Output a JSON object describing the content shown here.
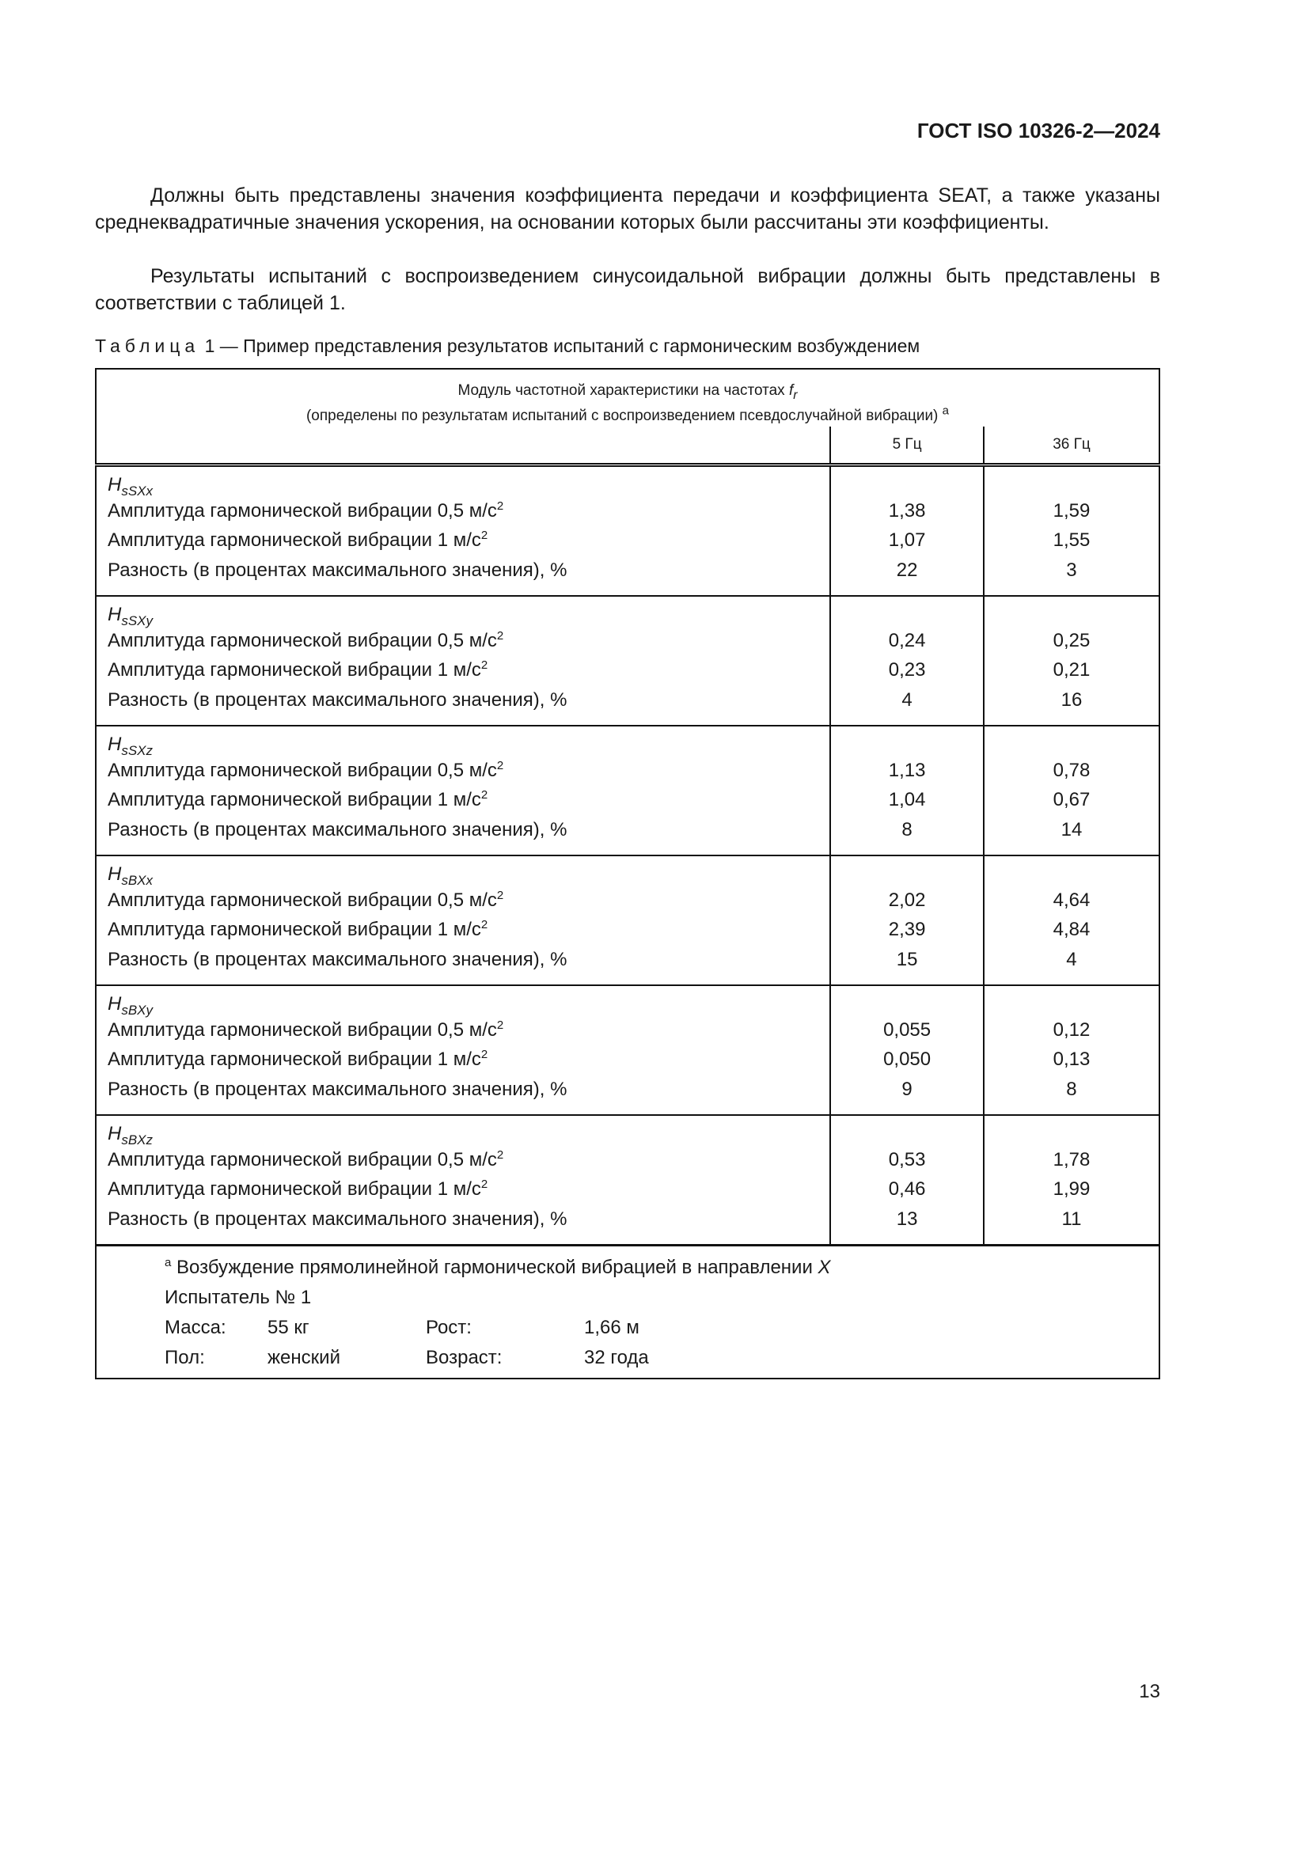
{
  "header": "ГОСТ ISO 10326-2—2024",
  "paragraphs": [
    "Должны быть представлены значения коэффициента передачи и коэффициента SEAT, а также указаны среднеквадратичные значения ускорения, на основании которых были рассчитаны эти коэффициенты.",
    "Результаты испытаний с воспроизведением синусоидальной вибрации должны быть представлены в соответствии с таблицей 1."
  ],
  "caption": {
    "label": "Таблица",
    "rest": " 1 — Пример представления результатов испытаний с гармоническим возбуждением"
  },
  "table": {
    "title_line1": "Модуль частотной характеристики на частотах ",
    "title_f": "f",
    "title_r": "r",
    "title_line2": "(определены по результатам испытаний с воспроизведением псевдослучайной вибрации) ",
    "title_note": "a",
    "columns": [
      "5 Гц",
      "36 Гц"
    ],
    "row_labels": [
      "Амплитуда гармонической вибрации 0,5 м/с",
      "Амплитуда гармонической вибрации 1 м/с",
      "Разность (в процентах максимального значения), %"
    ],
    "sq": "2",
    "groups": [
      {
        "H": "H",
        "sub": "sSXx",
        "v5": [
          "1,38",
          "1,07",
          "22"
        ],
        "v36": [
          "1,59",
          "1,55",
          "3"
        ]
      },
      {
        "H": "H",
        "sub": "sSXy",
        "v5": [
          "0,24",
          "0,23",
          "4"
        ],
        "v36": [
          "0,25",
          "0,21",
          "16"
        ]
      },
      {
        "H": "H",
        "sub": "sSXz",
        "v5": [
          "1,13",
          "1,04",
          "8"
        ],
        "v36": [
          "0,78",
          "0,67",
          "14"
        ]
      },
      {
        "H": "H",
        "sub": "sBXx",
        "v5": [
          "2,02",
          "2,39",
          "15"
        ],
        "v36": [
          "4,64",
          "4,84",
          "4"
        ]
      },
      {
        "H": "H",
        "sub": "sBXy",
        "v5": [
          "0,055",
          "0,050",
          "9"
        ],
        "v36": [
          "0,12",
          "0,13",
          "8"
        ]
      },
      {
        "H": "H",
        "sub": "sBXz",
        "v5": [
          "0,53",
          "0,46",
          "13"
        ],
        "v36": [
          "1,78",
          "1,99",
          "11"
        ]
      }
    ],
    "footnote": {
      "mark": "a",
      "text": " Возбуждение прямолинейной гармонической вибрацией в направлении ",
      "axis": "X"
    },
    "tester": "Испытатель № 1",
    "mass_label": "Масса:",
    "mass": "55 кг",
    "height_label": "Рост:",
    "height": "1,66 м",
    "sex_label": "Пол:",
    "sex": "женский",
    "age_label": "Возраст:",
    "age": "32 года"
  },
  "page_number": "13"
}
